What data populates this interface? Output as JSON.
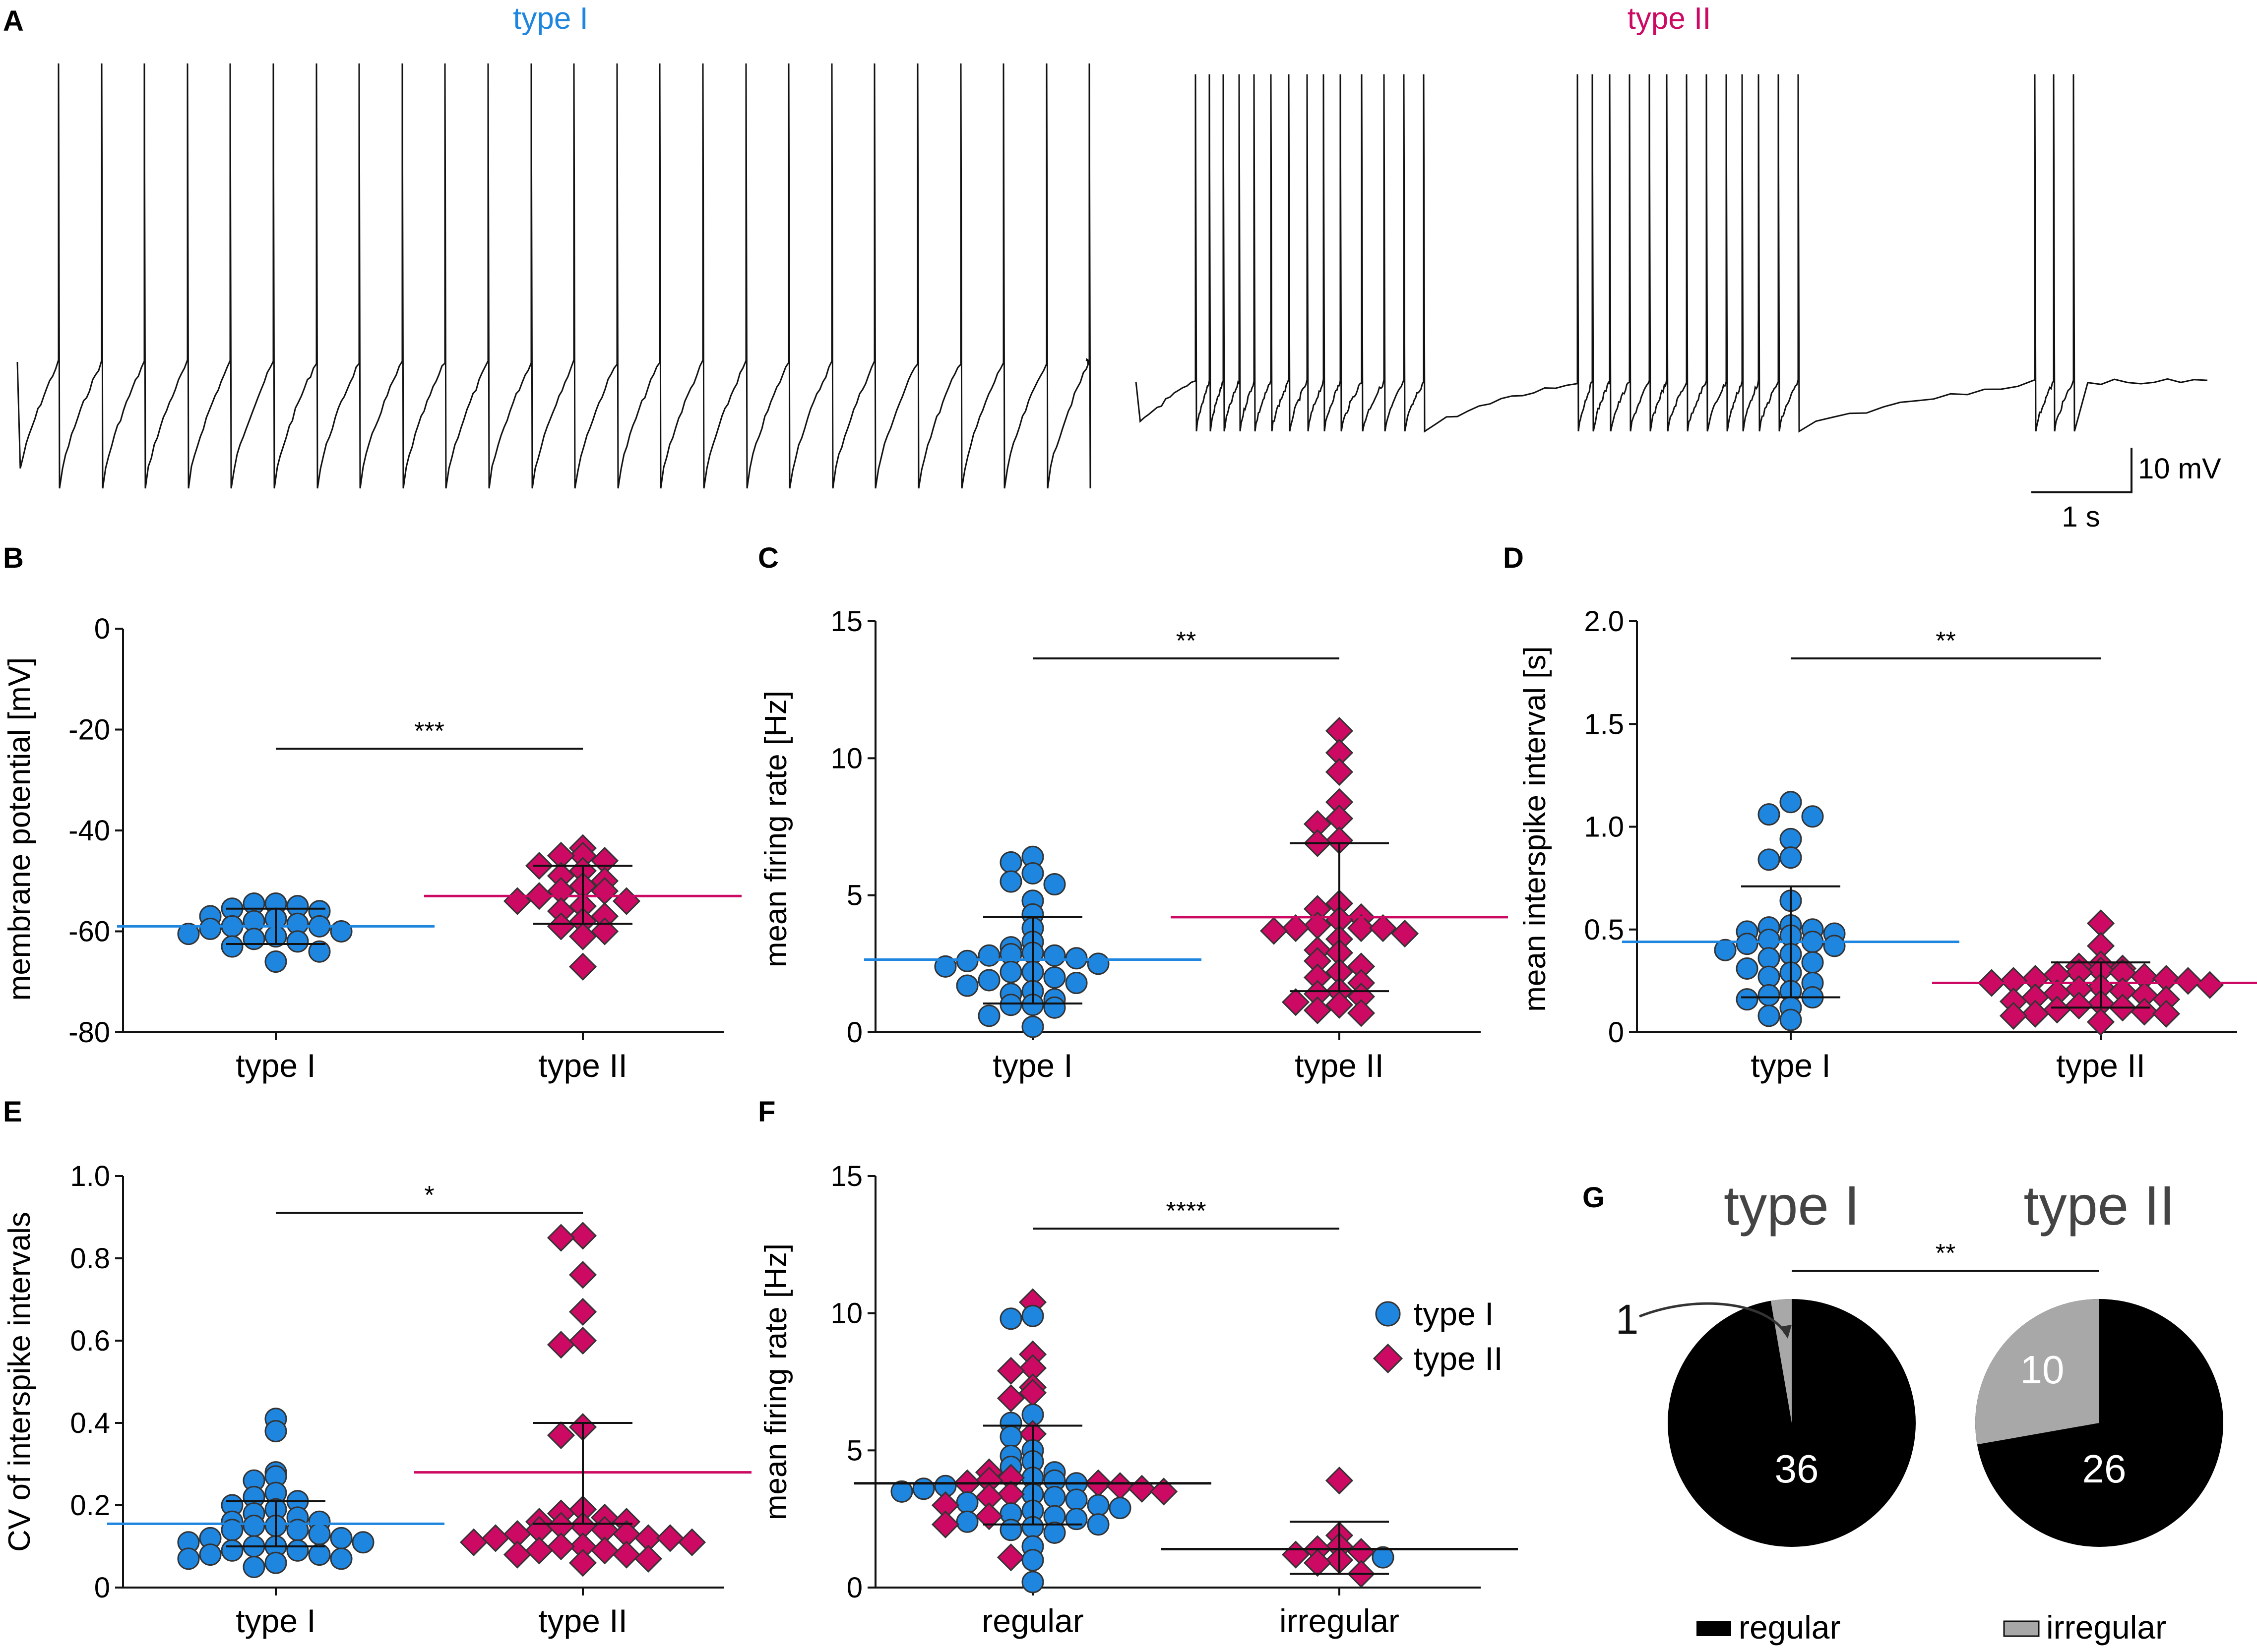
{
  "colors": {
    "type_i": "#1f86e0",
    "type_ii": "#cc0a63",
    "pie_regular": "#000000",
    "pie_irregular": "#a8a8a8"
  },
  "panel_A": {
    "label": "A",
    "type_i_title": "type I",
    "type_ii_title": "type II",
    "scale_voltage": "10 mV",
    "scale_time": "1 s"
  },
  "chart_data": [
    {
      "panel": "B",
      "type": "scatter",
      "ylabel": "membrane potential [mV]",
      "ylim": [
        -80,
        0
      ],
      "yticks": [
        "0",
        "-20",
        "-40",
        "-60",
        "-80"
      ],
      "categories": [
        "type I",
        "type II"
      ],
      "significance": "***",
      "series": [
        {
          "name": "type I",
          "marker": "circle",
          "mean": -59,
          "sd_low": -62.5,
          "sd_high": -55.5,
          "values": [
            -54.5,
            -54.5,
            -55,
            -55.5,
            -56,
            -57,
            -57.5,
            -58,
            -58.5,
            -59,
            -59,
            -59.5,
            -60,
            -60.5,
            -61,
            -61.5,
            -62,
            -63,
            -64,
            -66
          ]
        },
        {
          "name": "type II",
          "marker": "diamond",
          "mean": -53,
          "sd_low": -58.5,
          "sd_high": -47,
          "values": [
            -43.5,
            -45,
            -45,
            -46,
            -47,
            -48,
            -49,
            -50,
            -51,
            -52,
            -52,
            -53,
            -54,
            -54,
            -55,
            -56,
            -57,
            -58,
            -59,
            -60,
            -61,
            -67
          ]
        }
      ]
    },
    {
      "panel": "C",
      "type": "scatter",
      "ylabel": "mean firing rate [Hz]",
      "ylim": [
        0,
        15
      ],
      "yticks": [
        "15",
        "10",
        "5",
        "0"
      ],
      "categories": [
        "type I",
        "type II"
      ],
      "significance": "**",
      "series": [
        {
          "name": "type I",
          "marker": "circle",
          "mean": 2.65,
          "sd_low": 1.05,
          "sd_high": 4.2,
          "values": [
            6.4,
            6.2,
            5.8,
            5.5,
            5.4,
            4.8,
            4.3,
            3.8,
            3.3,
            3.1,
            2.9,
            2.85,
            2.8,
            2.8,
            2.7,
            2.6,
            2.5,
            2.4,
            2.2,
            2.2,
            2.0,
            1.9,
            1.8,
            1.7,
            1.5,
            1.4,
            1.2,
            1.0,
            1.0,
            0.9,
            0.6,
            0.2
          ]
        },
        {
          "name": "type II",
          "marker": "diamond",
          "mean": 4.2,
          "sd_low": 1.5,
          "sd_high": 6.9,
          "values": [
            11.0,
            10.2,
            9.5,
            8.4,
            7.8,
            7.6,
            7.0,
            6.9,
            4.7,
            4.5,
            4.2,
            4.1,
            3.9,
            3.8,
            3.8,
            3.8,
            3.7,
            3.6,
            3.4,
            3.0,
            2.9,
            2.6,
            2.4,
            2.2,
            2.0,
            1.8,
            1.5,
            1.4,
            1.3,
            1.1,
            1.0,
            0.8,
            0.7
          ]
        }
      ]
    },
    {
      "panel": "D",
      "type": "scatter",
      "ylabel": "mean interspike interval [s]",
      "ylim": [
        0,
        2.0
      ],
      "yticks": [
        "2.0",
        "1.5",
        "1.0",
        "0.5",
        "0"
      ],
      "categories": [
        "type I",
        "type II"
      ],
      "significance": "**",
      "series": [
        {
          "name": "type I",
          "marker": "circle",
          "mean": 0.44,
          "sd_low": 0.17,
          "sd_high": 0.71,
          "values": [
            1.12,
            1.06,
            1.05,
            0.94,
            0.85,
            0.84,
            0.64,
            0.52,
            0.51,
            0.5,
            0.49,
            0.48,
            0.47,
            0.45,
            0.44,
            0.43,
            0.42,
            0.4,
            0.38,
            0.36,
            0.34,
            0.31,
            0.29,
            0.27,
            0.24,
            0.2,
            0.18,
            0.17,
            0.16,
            0.12,
            0.08,
            0.06
          ]
        },
        {
          "name": "type II",
          "marker": "diamond",
          "mean": 0.24,
          "sd_low": 0.12,
          "sd_high": 0.34,
          "values": [
            0.53,
            0.42,
            0.33,
            0.32,
            0.31,
            0.3,
            0.29,
            0.29,
            0.28,
            0.27,
            0.26,
            0.26,
            0.25,
            0.25,
            0.24,
            0.23,
            0.22,
            0.21,
            0.2,
            0.19,
            0.18,
            0.17,
            0.16,
            0.15,
            0.14,
            0.13,
            0.12,
            0.11,
            0.1,
            0.09,
            0.09,
            0.08,
            0.05
          ]
        }
      ]
    },
    {
      "panel": "E",
      "type": "scatter",
      "ylabel": "CV of interspike intervals",
      "ylim": [
        0,
        1.0
      ],
      "yticks": [
        "1.0",
        "0.8",
        "0.6",
        "0.4",
        "0.2",
        "0"
      ],
      "categories": [
        "type I",
        "type II"
      ],
      "significance": "*",
      "series": [
        {
          "name": "type I",
          "marker": "circle",
          "mean": 0.155,
          "sd_low": 0.1,
          "sd_high": 0.21,
          "values": [
            0.41,
            0.38,
            0.28,
            0.27,
            0.26,
            0.23,
            0.22,
            0.21,
            0.2,
            0.19,
            0.18,
            0.17,
            0.16,
            0.16,
            0.15,
            0.15,
            0.14,
            0.14,
            0.13,
            0.12,
            0.12,
            0.11,
            0.11,
            0.1,
            0.1,
            0.09,
            0.09,
            0.08,
            0.08,
            0.07,
            0.07,
            0.06,
            0.05
          ]
        },
        {
          "name": "type II",
          "marker": "diamond",
          "mean": 0.28,
          "sd_low": 0.155,
          "sd_high": 0.4,
          "values": [
            0.855,
            0.85,
            0.76,
            0.67,
            0.6,
            0.59,
            0.39,
            0.37,
            0.19,
            0.18,
            0.17,
            0.16,
            0.16,
            0.15,
            0.15,
            0.14,
            0.14,
            0.13,
            0.13,
            0.12,
            0.12,
            0.12,
            0.11,
            0.11,
            0.1,
            0.1,
            0.09,
            0.09,
            0.08,
            0.08,
            0.07,
            0.06
          ]
        }
      ]
    },
    {
      "panel": "F",
      "type": "scatter",
      "ylabel": "mean firing rate [Hz]",
      "ylim": [
        0,
        15
      ],
      "yticks": [
        "15",
        "10",
        "5",
        "0"
      ],
      "categories": [
        "regular",
        "irregular"
      ],
      "significance": "****",
      "legend": [
        "type I",
        "type II"
      ],
      "groups": [
        {
          "name": "regular",
          "mean": 3.8,
          "sd_low": 2.3,
          "sd_high": 5.9,
          "type_i": [
            9.9,
            9.8,
            6.3,
            6.0,
            5.5,
            5.0,
            4.8,
            4.6,
            4.4,
            4.2,
            4.0,
            3.9,
            3.8,
            3.7,
            3.6,
            3.5,
            3.4,
            3.3,
            3.2,
            3.1,
            3.0,
            2.9,
            2.8,
            2.7,
            2.6,
            2.5,
            2.4,
            2.3,
            2.2,
            2.1,
            2.0,
            1.5,
            1.0,
            0.2
          ],
          "type_ii": [
            10.4,
            8.5,
            8.0,
            7.9,
            7.3,
            7.1,
            6.9,
            5.6,
            4.2,
            4.0,
            3.9,
            3.8,
            3.8,
            3.7,
            3.6,
            3.5,
            3.4,
            3.3,
            3.0,
            2.6,
            2.3,
            1.1
          ]
        },
        {
          "name": "irregular",
          "mean": 1.4,
          "sd_low": 0.5,
          "sd_high": 2.4,
          "type_i": [
            1.1
          ],
          "type_ii": [
            3.9,
            1.9,
            1.5,
            1.4,
            1.3,
            1.2,
            1.0,
            0.9,
            0.5
          ]
        }
      ]
    },
    {
      "panel": "G",
      "type": "pie",
      "significance": "**",
      "legend": [
        "regular",
        "irregular"
      ],
      "pies": [
        {
          "title": "type I",
          "regular": 36,
          "irregular": 1
        },
        {
          "title": "type II",
          "regular": 26,
          "irregular": 10
        }
      ]
    }
  ]
}
